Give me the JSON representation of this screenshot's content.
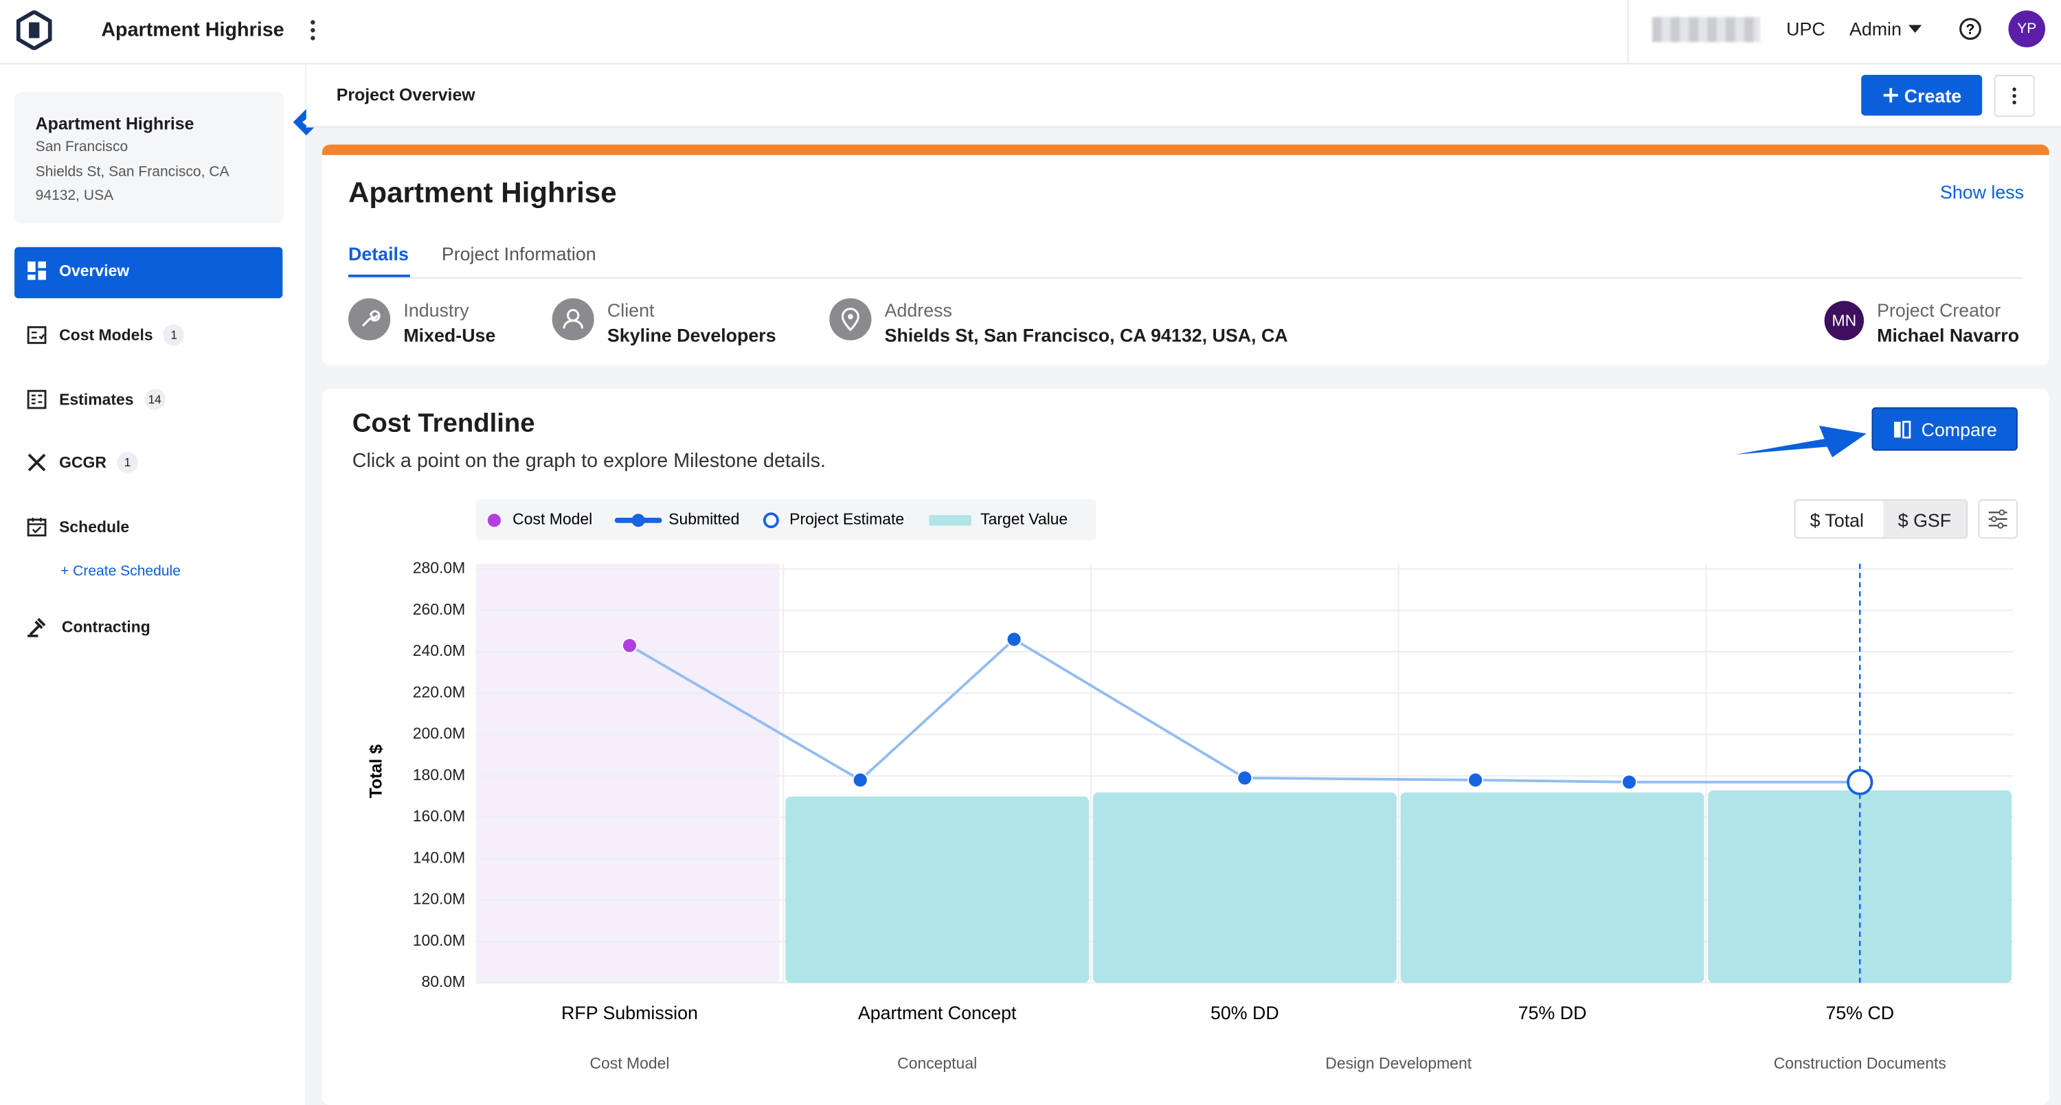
{
  "header": {
    "title": "Apartment Highrise",
    "org": "UPC",
    "role": "Admin",
    "avatar": "YP"
  },
  "sidebar": {
    "project": {
      "name": "Apartment Highrise",
      "city": "San Francisco",
      "address": "Shields St, San Francisco, CA 94132, USA"
    },
    "nav": [
      {
        "label": "Overview"
      },
      {
        "label": "Cost Models",
        "badge": 1
      },
      {
        "label": "Estimates",
        "badge": 14
      },
      {
        "label": "GCGR",
        "badge": 1
      },
      {
        "label": "Schedule"
      },
      {
        "label": "Contracting"
      }
    ],
    "create_schedule": "+ Create Schedule"
  },
  "page": {
    "title": "Project Overview",
    "create": "Create"
  },
  "project_card": {
    "title": "Apartment Highrise",
    "toggle": "Show less",
    "tabs": [
      "Details",
      "Project Information"
    ],
    "fields": [
      {
        "label": "Industry",
        "value": "Mixed-Use"
      },
      {
        "label": "Client",
        "value": "Skyline Developers"
      },
      {
        "label": "Address",
        "value": "Shields St, San Francisco, CA 94132, USA, CA"
      }
    ],
    "creator": {
      "initials": "MN",
      "label": "Project Creator",
      "value": "Michael Navarro"
    }
  },
  "chart_data": {
    "type": "line",
    "title": "Cost Trendline",
    "subtitle": "Click a point on the graph to explore Milestone details.",
    "compare": "Compare",
    "toggle": [
      "$ Total",
      "$ GSF"
    ],
    "ylabel": "Total $",
    "categories": [
      "RFP Submission",
      "Apartment Concept",
      "50% DD",
      "75% DD",
      "75% CD"
    ],
    "phases": [
      {
        "label": "Cost Model",
        "from": 0,
        "to": 0
      },
      {
        "label": "Conceptual",
        "from": 1,
        "to": 1
      },
      {
        "label": "Design Development",
        "from": 2,
        "to": 3
      },
      {
        "label": "Construction Documents",
        "from": 4,
        "to": 4
      }
    ],
    "x": [
      0,
      0.75,
      1.25,
      2,
      2.75,
      3.25,
      4
    ],
    "series": [
      {
        "name": "Cost Model",
        "color": "#b23ee0",
        "values": [
          243000000,
          null,
          null,
          null,
          null,
          null,
          null
        ]
      },
      {
        "name": "Submitted",
        "color": "#1763e0",
        "values": [
          null,
          178000000,
          246000000,
          179000000,
          178000000,
          177000000,
          null
        ]
      },
      {
        "name": "Project Estimate",
        "color": "#1763e0",
        "values": [
          null,
          null,
          null,
          null,
          null,
          null,
          177000000
        ]
      },
      {
        "name": "Target Value",
        "color": "#b1e4e8",
        "type": "bar",
        "values": [
          null,
          170000000,
          172000000,
          172000000,
          173000000
        ]
      }
    ],
    "ylim": [
      80000000,
      280000000
    ],
    "yticks": [
      {
        "value": 80000000,
        "label": "80.0M"
      },
      {
        "value": 100000000,
        "label": "100.0M"
      },
      {
        "value": 120000000,
        "label": "120.0M"
      },
      {
        "value": 140000000,
        "label": "140.0M"
      },
      {
        "value": 160000000,
        "label": "160.0M"
      },
      {
        "value": 180000000,
        "label": "180.0M"
      },
      {
        "value": 200000000,
        "label": "200.0M"
      },
      {
        "value": 220000000,
        "label": "220.0M"
      },
      {
        "value": 240000000,
        "label": "240.0M"
      },
      {
        "value": 260000000,
        "label": "260.0M"
      },
      {
        "value": 280000000,
        "label": "280.0M"
      }
    ],
    "grid": true
  }
}
